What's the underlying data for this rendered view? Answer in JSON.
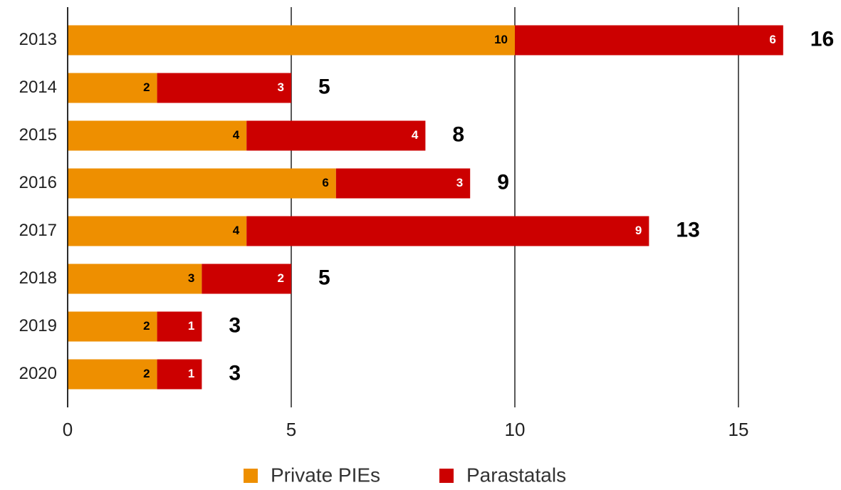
{
  "chart_data": {
    "type": "stacked_bar_horizontal",
    "categories": [
      "2013",
      "2014",
      "2015",
      "2016",
      "2017",
      "2018",
      "2019",
      "2020"
    ],
    "series": [
      {
        "name": "Private PIEs",
        "color": "#ee8f00",
        "label_color": "#000000",
        "values": [
          10,
          2,
          4,
          6,
          4,
          3,
          2,
          2
        ]
      },
      {
        "name": "Parastatals",
        "color": "#cc0000",
        "label_color": "#ffffff",
        "values": [
          6,
          3,
          4,
          3,
          9,
          2,
          1,
          1
        ]
      }
    ],
    "totals": [
      16,
      5,
      8,
      9,
      13,
      5,
      3,
      3
    ],
    "xlim": [
      0,
      17
    ],
    "xticks": [
      0,
      5,
      10,
      15
    ],
    "grid": true,
    "legend": "bottom"
  }
}
